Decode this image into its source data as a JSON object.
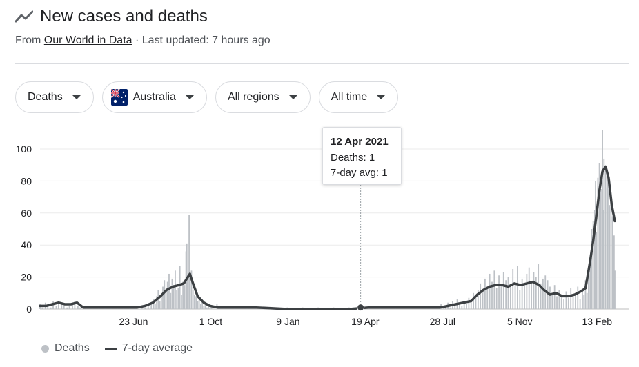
{
  "header": {
    "title": "New cases and deaths",
    "source_prefix": "From ",
    "source_link": "Our World in Data",
    "updated": " · Last updated: 7 hours ago"
  },
  "filters": {
    "metric": "Deaths",
    "country": "Australia",
    "region": "All regions",
    "range": "All time"
  },
  "icons": {
    "title": "trending-line-icon",
    "caret": "caret-down-icon",
    "flag": "australia-flag-icon"
  },
  "tooltip": {
    "date": "12 Apr 2021",
    "deaths_line": "Deaths: 1",
    "avg_line": "7-day avg: 1"
  },
  "legend": {
    "deaths": "Deaths",
    "avg": "7-day average"
  },
  "colors": {
    "bars": "#bdc1c6",
    "line": "#3c4043",
    "grid": "#ebebeb"
  },
  "chart_data": {
    "type": "bar",
    "title": "New cases and deaths",
    "ylim": [
      0,
      110
    ],
    "yticks": [
      0,
      20,
      40,
      60,
      80,
      100
    ],
    "xticks": [
      {
        "day": 121,
        "label": "23 Jun"
      },
      {
        "day": 221,
        "label": "1 Oct"
      },
      {
        "day": 321,
        "label": "9 Jan"
      },
      {
        "day": 421,
        "label": "19 Apr"
      },
      {
        "day": 521,
        "label": "28 Jul"
      },
      {
        "day": 621,
        "label": "5 Nov"
      },
      {
        "day": 721,
        "label": "13 Feb"
      }
    ],
    "grid": true,
    "legend_position": "bottom-left",
    "series": [
      {
        "name": "Deaths",
        "kind": "bar",
        "points": [
          [
            0,
            3
          ],
          [
            3,
            1
          ],
          [
            7,
            4
          ],
          [
            10,
            2
          ],
          [
            14,
            1
          ],
          [
            17,
            5
          ],
          [
            21,
            2
          ],
          [
            24,
            4
          ],
          [
            28,
            3
          ],
          [
            31,
            2
          ],
          [
            35,
            1
          ],
          [
            38,
            2
          ],
          [
            42,
            4
          ],
          [
            45,
            5
          ],
          [
            49,
            2
          ],
          [
            52,
            1
          ],
          [
            56,
            0
          ],
          [
            60,
            1
          ],
          [
            64,
            0
          ],
          [
            68,
            1
          ],
          [
            72,
            0
          ],
          [
            76,
            1
          ],
          [
            80,
            0
          ],
          [
            84,
            1
          ],
          [
            88,
            0
          ],
          [
            92,
            1
          ],
          [
            96,
            0
          ],
          [
            100,
            1
          ],
          [
            104,
            0
          ],
          [
            108,
            1
          ],
          [
            112,
            0
          ],
          [
            116,
            1
          ],
          [
            120,
            0
          ],
          [
            124,
            1
          ],
          [
            128,
            0
          ],
          [
            132,
            2
          ],
          [
            136,
            1
          ],
          [
            140,
            3
          ],
          [
            144,
            4
          ],
          [
            147,
            6
          ],
          [
            149,
            3
          ],
          [
            151,
            8
          ],
          [
            153,
            12
          ],
          [
            155,
            5
          ],
          [
            157,
            9
          ],
          [
            159,
            14
          ],
          [
            161,
            18
          ],
          [
            163,
            11
          ],
          [
            165,
            17
          ],
          [
            167,
            22
          ],
          [
            169,
            10
          ],
          [
            171,
            19
          ],
          [
            173,
            15
          ],
          [
            175,
            24
          ],
          [
            177,
            12
          ],
          [
            179,
            13
          ],
          [
            181,
            27
          ],
          [
            183,
            9
          ],
          [
            185,
            17
          ],
          [
            187,
            15
          ],
          [
            189,
            36
          ],
          [
            190,
            41
          ],
          [
            191,
            20
          ],
          [
            193,
            59
          ],
          [
            194,
            16
          ],
          [
            196,
            24
          ],
          [
            198,
            12
          ],
          [
            200,
            9
          ],
          [
            202,
            8
          ],
          [
            204,
            5
          ],
          [
            206,
            7
          ],
          [
            208,
            3
          ],
          [
            210,
            6
          ],
          [
            212,
            2
          ],
          [
            214,
            4
          ],
          [
            216,
            1
          ],
          [
            218,
            2
          ],
          [
            220,
            1
          ],
          [
            222,
            1
          ],
          [
            225,
            0
          ],
          [
            229,
            3
          ],
          [
            233,
            0
          ],
          [
            238,
            1
          ],
          [
            245,
            0
          ],
          [
            252,
            1
          ],
          [
            260,
            0
          ],
          [
            268,
            1
          ],
          [
            276,
            0
          ],
          [
            284,
            1
          ],
          [
            292,
            0
          ],
          [
            300,
            1
          ],
          [
            310,
            0
          ],
          [
            320,
            1
          ],
          [
            330,
            0
          ],
          [
            340,
            1
          ],
          [
            350,
            0
          ],
          [
            360,
            1
          ],
          [
            370,
            0
          ],
          [
            380,
            1
          ],
          [
            390,
            0
          ],
          [
            400,
            1
          ],
          [
            410,
            0
          ],
          [
            420,
            1
          ],
          [
            425,
            1
          ],
          [
            430,
            0
          ],
          [
            440,
            1
          ],
          [
            450,
            0
          ],
          [
            460,
            1
          ],
          [
            470,
            0
          ],
          [
            480,
            1
          ],
          [
            490,
            0
          ],
          [
            500,
            1
          ],
          [
            508,
            0
          ],
          [
            515,
            1
          ],
          [
            519,
            3
          ],
          [
            522,
            1
          ],
          [
            525,
            2
          ],
          [
            528,
            4
          ],
          [
            531,
            1
          ],
          [
            534,
            5
          ],
          [
            537,
            2
          ],
          [
            540,
            6
          ],
          [
            543,
            3
          ],
          [
            546,
            2
          ],
          [
            549,
            4
          ],
          [
            552,
            3
          ],
          [
            555,
            7
          ],
          [
            558,
            5
          ],
          [
            561,
            10
          ],
          [
            564,
            8
          ],
          [
            567,
            12
          ],
          [
            570,
            16
          ],
          [
            573,
            11
          ],
          [
            576,
            19
          ],
          [
            579,
            14
          ],
          [
            582,
            22
          ],
          [
            585,
            17
          ],
          [
            588,
            24
          ],
          [
            591,
            13
          ],
          [
            594,
            21
          ],
          [
            597,
            15
          ],
          [
            600,
            23
          ],
          [
            603,
            18
          ],
          [
            606,
            20
          ],
          [
            609,
            14
          ],
          [
            612,
            25
          ],
          [
            615,
            16
          ],
          [
            618,
            27
          ],
          [
            621,
            12
          ],
          [
            624,
            19
          ],
          [
            627,
            15
          ],
          [
            630,
            22
          ],
          [
            633,
            26
          ],
          [
            636,
            17
          ],
          [
            639,
            23
          ],
          [
            642,
            20
          ],
          [
            645,
            28
          ],
          [
            648,
            16
          ],
          [
            651,
            19
          ],
          [
            654,
            21
          ],
          [
            657,
            18
          ],
          [
            660,
            14
          ],
          [
            663,
            10
          ],
          [
            666,
            15
          ],
          [
            669,
            8
          ],
          [
            672,
            12
          ],
          [
            675,
            9
          ],
          [
            678,
            6
          ],
          [
            681,
            11
          ],
          [
            684,
            7
          ],
          [
            687,
            13
          ],
          [
            690,
            8
          ],
          [
            693,
            10
          ],
          [
            696,
            14
          ],
          [
            699,
            6
          ],
          [
            702,
            12
          ],
          [
            704,
            9
          ],
          [
            706,
            18
          ],
          [
            708,
            10
          ],
          [
            710,
            25
          ],
          [
            712,
            32
          ],
          [
            714,
            50
          ],
          [
            716,
            55
          ],
          [
            718,
            62
          ],
          [
            719,
            80
          ],
          [
            720,
            48
          ],
          [
            722,
            82
          ],
          [
            724,
            91
          ],
          [
            726,
            75
          ],
          [
            728,
            112
          ],
          [
            729,
            62
          ],
          [
            730,
            94
          ],
          [
            732,
            88
          ],
          [
            734,
            76
          ],
          [
            735,
            85
          ],
          [
            737,
            65
          ],
          [
            739,
            72
          ],
          [
            741,
            58
          ],
          [
            743,
            46
          ],
          [
            744,
            24
          ]
        ]
      },
      {
        "name": "7-day average",
        "kind": "line",
        "points": [
          [
            0,
            2
          ],
          [
            8,
            2
          ],
          [
            16,
            3
          ],
          [
            24,
            4
          ],
          [
            32,
            3
          ],
          [
            40,
            3
          ],
          [
            48,
            4
          ],
          [
            56,
            1
          ],
          [
            70,
            1
          ],
          [
            90,
            1
          ],
          [
            110,
            1
          ],
          [
            126,
            1
          ],
          [
            136,
            2
          ],
          [
            146,
            4
          ],
          [
            156,
            8
          ],
          [
            164,
            12
          ],
          [
            172,
            14
          ],
          [
            180,
            15
          ],
          [
            186,
            16
          ],
          [
            190,
            19
          ],
          [
            194,
            22
          ],
          [
            198,
            16
          ],
          [
            204,
            8
          ],
          [
            212,
            4
          ],
          [
            220,
            2
          ],
          [
            230,
            1
          ],
          [
            250,
            1
          ],
          [
            280,
            1
          ],
          [
            320,
            0
          ],
          [
            360,
            0
          ],
          [
            400,
            0
          ],
          [
            425,
            1
          ],
          [
            460,
            1
          ],
          [
            500,
            1
          ],
          [
            518,
            1
          ],
          [
            528,
            2
          ],
          [
            538,
            3
          ],
          [
            548,
            4
          ],
          [
            558,
            5
          ],
          [
            566,
            9
          ],
          [
            574,
            12
          ],
          [
            582,
            14
          ],
          [
            590,
            15
          ],
          [
            598,
            15
          ],
          [
            606,
            14
          ],
          [
            614,
            16
          ],
          [
            622,
            15
          ],
          [
            630,
            16
          ],
          [
            638,
            17
          ],
          [
            646,
            15
          ],
          [
            652,
            12
          ],
          [
            660,
            9
          ],
          [
            668,
            10
          ],
          [
            676,
            8
          ],
          [
            684,
            8
          ],
          [
            692,
            9
          ],
          [
            700,
            11
          ],
          [
            706,
            13
          ],
          [
            712,
            30
          ],
          [
            716,
            43
          ],
          [
            720,
            58
          ],
          [
            724,
            74
          ],
          [
            728,
            86
          ],
          [
            732,
            89
          ],
          [
            736,
            82
          ],
          [
            740,
            65
          ],
          [
            744,
            55
          ]
        ]
      }
    ],
    "highlight": {
      "day": 415,
      "value": 1
    }
  }
}
